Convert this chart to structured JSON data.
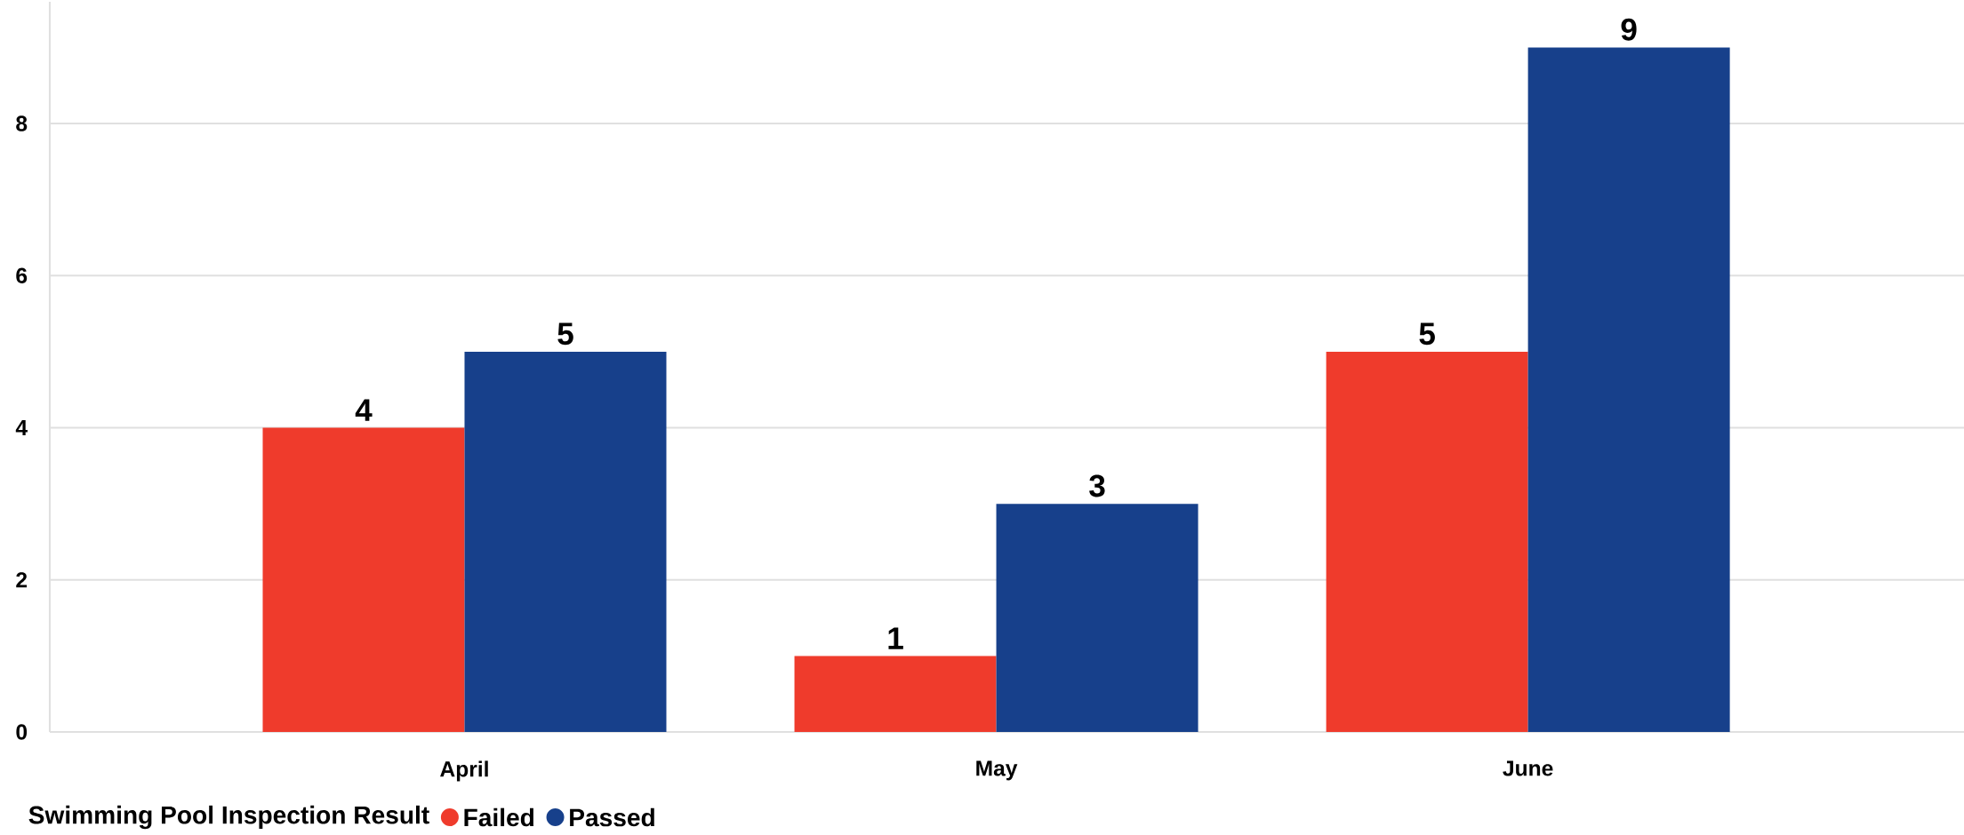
{
  "chart_data": {
    "type": "bar",
    "categories": [
      "April",
      "May",
      "June"
    ],
    "series": [
      {
        "name": "Failed",
        "color": "#ef3b2c",
        "values": [
          4,
          1,
          5
        ]
      },
      {
        "name": "Passed",
        "color": "#17408b",
        "values": [
          5,
          3,
          9
        ]
      }
    ],
    "legend_title": "Swimming Pool Inspection Result",
    "ylim": [
      0,
      9.6
    ],
    "yticks": [
      0,
      2,
      4,
      6,
      8
    ],
    "grid": "y",
    "legend": "bottom",
    "data_labels": true
  }
}
